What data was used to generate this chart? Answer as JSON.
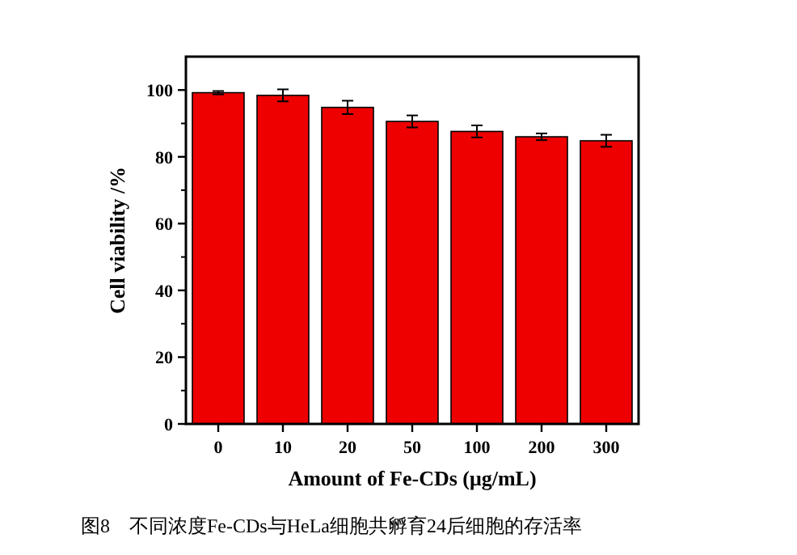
{
  "chart_data": {
    "type": "bar",
    "xlabel": "Amount of Fe-CDs (μg/mL)",
    "ylabel": "Cell viability /%",
    "categories": [
      "0",
      "10",
      "20",
      "50",
      "100",
      "200",
      "300"
    ],
    "values": [
      99.2,
      98.4,
      94.8,
      90.6,
      87.6,
      86.0,
      84.8
    ],
    "errors": [
      0.5,
      1.8,
      2,
      1.8,
      1.8,
      1,
      1.8
    ],
    "color": "#ee0000",
    "ylim": [
      0,
      110
    ],
    "yticks": [
      0,
      20,
      40,
      60,
      80,
      100
    ],
    "annotations": [
      "图8　不同浓度Fe-CDs与HeLa细胞共孵育24后细胞的存活率"
    ]
  }
}
